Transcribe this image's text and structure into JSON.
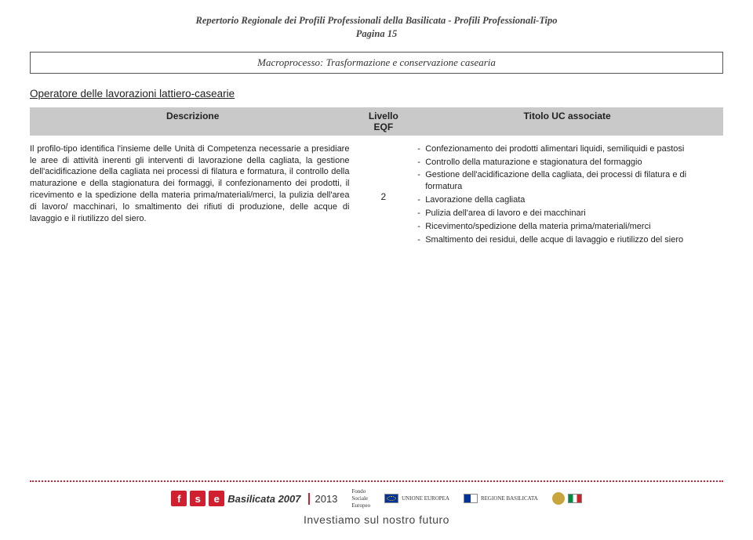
{
  "header": {
    "line1": "Repertorio Regionale dei Profili Professionali della Basilicata - Profili Professionali-Tipo",
    "line2": "Pagina 15"
  },
  "macroprocesso": "Macroprocesso: Trasformazione e conservazione casearia",
  "operator_title": "Operatore delle lavorazioni lattiero-casearie",
  "columns": {
    "desc": "Descrizione",
    "eqf": "Livello EQF",
    "uc": "Titolo UC associate"
  },
  "description": "Il profilo-tipo identifica l'insieme delle Unità di Competenza necessarie a presidiare le aree di attività inerenti gli interventi di lavorazione della cagliata, la gestione dell'acidificazione della cagliata nei processi di filatura e formatura, il controllo della maturazione e della stagionatura dei formaggi, il confezionamento dei prodotti, il ricevimento e la spedizione della materia prima/materiali/merci, la pulizia dell'area di lavoro/ macchinari, lo smaltimento dei rifiuti di produzione, delle acque di lavaggio e il riutilizzo del siero.",
  "eqf_level": "2",
  "uc_items": [
    "Confezionamento dei prodotti alimentari liquidi, semiliquidi e pastosi",
    "Controllo della maturazione e stagionatura del formaggio",
    "Gestione dell'acidificazione della cagliata, dei processi di filatura e di formatura",
    "Lavorazione della cagliata",
    "Pulizia dell'area di lavoro e dei macchinari",
    "Ricevimento/spedizione della materia prima/materiali/merci",
    "Smaltimento dei residui, delle acque di lavaggio e riutilizzo del siero"
  ],
  "footer": {
    "fse_letters": [
      "f",
      "s",
      "e"
    ],
    "brand": "Basilicata 2007",
    "years": "2013",
    "fondo_lines": [
      "Fondo",
      "Sociale",
      "Europeo"
    ],
    "eu_label": "UNIONE EUROPEA",
    "region_label": "REGIONE BASILICATA",
    "tagline": "Investiamo sul nostro futuro"
  }
}
